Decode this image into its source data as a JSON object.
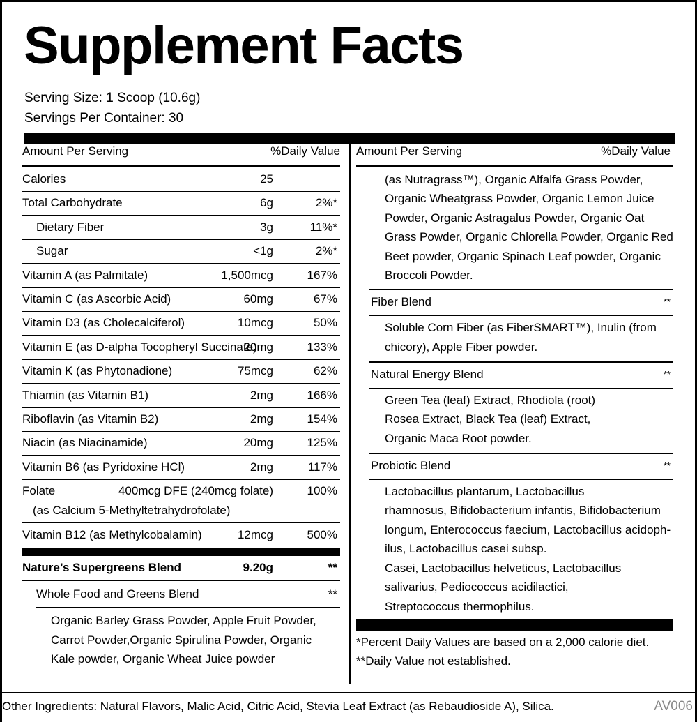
{
  "header": {
    "title": "Supplement Facts",
    "serving_size": "Serving Size: 1 Scoop (10.6g)",
    "servings_per_container": "Servings Per Container: 30"
  },
  "left": {
    "columns": [
      "Amount Per Serving",
      "%Daily Value"
    ],
    "rows": [
      {
        "name": "Calories",
        "amount": "25"
      },
      {
        "name": "Total Carbohydrate",
        "amount": "6g",
        "dv": "2%*"
      },
      {
        "name": "Dietary Fiber",
        "amount": "3g",
        "dv": "11%*"
      },
      {
        "name": "Sugar",
        "amount": "<1g",
        "dv": "2%*"
      },
      {
        "name": "Vitamin A (as Palmitate)",
        "amount": "1,500mcg",
        "dv": "167%"
      },
      {
        "name": "Vitamin C (as Ascorbic Acid)",
        "amount": "60mg",
        "dv": "67%"
      },
      {
        "name": "Vitamin D3 (as Cholecalciferol)",
        "amount": "10mcg",
        "dv": "50%"
      },
      {
        "name": "Vitamin E (as D-alpha Tocopheryl Succinate)",
        "amount": "20mg",
        "dv": "133%"
      },
      {
        "name": "Vitamin K (as Phytonadione)",
        "amount": "75mcg",
        "dv": "62%"
      },
      {
        "name": "Thiamin (as Vitamin B1)",
        "amount": "2mg",
        "dv": "166%"
      },
      {
        "name": "Riboflavin (as Vitamin B2)",
        "amount": "2mg",
        "dv": "154%"
      },
      {
        "name": "Niacin (as Niacinamide)",
        "amount": "20mg",
        "dv": "125%"
      },
      {
        "name": "Vitamin B6 (as Pyridoxine HCl)",
        "amount": "2mg",
        "dv": "117%"
      },
      {
        "name": "Folate",
        "amount": "400mcg DFE (240mcg folate)",
        "dv": "100%",
        "source": "(as Calcium 5-Methyltetrahydrofolate)"
      },
      {
        "name": "Vitamin B12 (as Methylcobalamin)",
        "amount": "12mcg",
        "dv": "500%"
      }
    ],
    "blend": {
      "name": "Nature’s Supergreens Blend",
      "amount": "9.20g",
      "dv": "**",
      "sub_blend": {
        "name": "Whole Food and Greens Blend",
        "dv": "**",
        "ingredients": [
          "Organic Barley Grass Powder, Apple Fruit Powder,",
          "Carrot Powder,Organic  Spirulina Powder, Organic",
          "Kale powder, Organic Wheat Juice powder"
        ]
      }
    }
  },
  "right": {
    "columns": [
      "Amount Per Serving",
      "%Daily Value"
    ],
    "continued": [
      "(as Nutragrass™), Organic Alfalfa Grass Powder,",
      "Organic Wheatgrass Powder, Organic Lemon Juice",
      "Powder, Organic Astragalus Powder, Organic Oat",
      "Grass Powder, Organic Chlorella Powder, Organic Red",
      "Beet powder, Organic Spinach Leaf powder, Organic",
      "Broccoli Powder."
    ],
    "blends": [
      {
        "name": "Fiber Blend",
        "dv": "**",
        "ingredients": [
          "Soluble Corn Fiber (as FiberSMART™), Inulin (from",
          "chicory), Apple Fiber powder."
        ]
      },
      {
        "name": "Natural Energy Blend",
        "dv": "**",
        "ingredients": [
          "Green Tea (leaf) Extract, Rhodiola (root)",
          "Rosea Extract, Black Tea (leaf) Extract,",
          "Organic Maca Root powder."
        ]
      },
      {
        "name": "Probiotic Blend",
        "dv": "**",
        "ingredients": [
          "Lactobacillus plantarum, Lactobacillus",
          "rhamnosus, Bifidobacterium infantis, Bifidobacterium",
          "longum, Enterococcus faecium, Lactobacillus acidoph-",
          "ilus, Lactobacillus casei subsp.",
          "Casei, Lactobacillus helveticus, Lactobacillus",
          "salivarius, Pediococcus acidilactici,",
          "Streptococcus thermophilus."
        ]
      }
    ],
    "footnotes": [
      "*Percent Daily Values are based on a 2,000 calorie diet.",
      "**Daily Value not established."
    ]
  },
  "other_ingredients": "Other Ingredients: Natural Flavors, Malic Acid, Citric Acid, Stevia Leaf Extract (as Rebaudioside A), Silica.",
  "code": "AV006"
}
